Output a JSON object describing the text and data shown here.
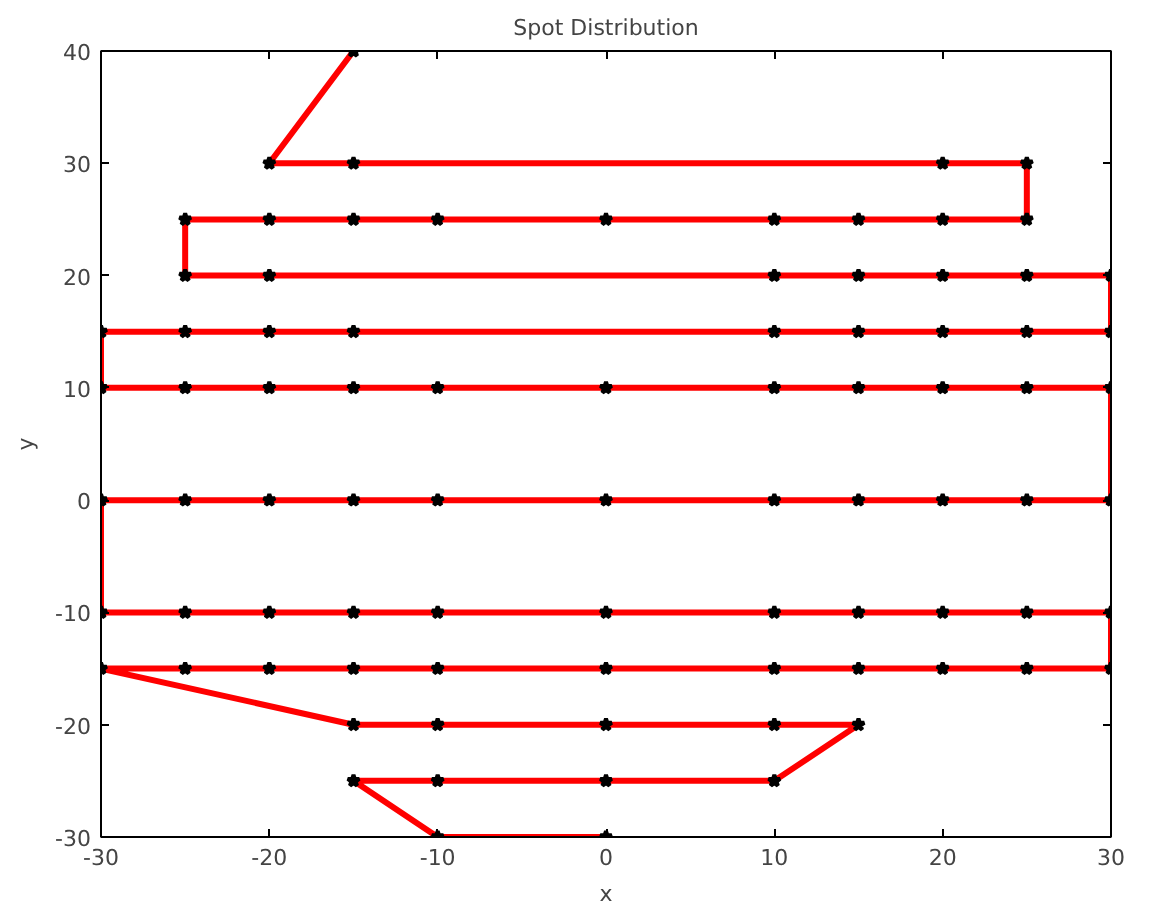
{
  "chart_data": {
    "type": "line",
    "title": "Spot Distribution",
    "xlabel": "x",
    "ylabel": "y",
    "xlim": [
      -30,
      30
    ],
    "ylim": [
      -30,
      40
    ],
    "xticks": [
      -30,
      -20,
      -10,
      0,
      10,
      20,
      30
    ],
    "yticks": [
      -30,
      -20,
      -10,
      0,
      10,
      20,
      30,
      40
    ],
    "grid": false,
    "series": [
      {
        "color": "#ff0000",
        "line_style": "solid",
        "marker": "none",
        "x": [
          -15,
          -20,
          25,
          25,
          -25,
          -25,
          30,
          30,
          -30,
          -30,
          30,
          30,
          -30,
          -30,
          30,
          30,
          -30,
          -15,
          15,
          10,
          -15,
          -10,
          0
        ],
        "values": [
          40,
          30,
          30,
          25,
          25,
          20,
          20,
          15,
          15,
          10,
          10,
          0,
          0,
          -10,
          -10,
          -15,
          -15,
          -20,
          -20,
          -25,
          -25,
          -30,
          -30
        ]
      },
      {
        "type": "scatter",
        "color": "#000000",
        "marker": "star",
        "x": [
          -15,
          -20,
          -15,
          20,
          25,
          -25,
          -20,
          -15,
          -10,
          0,
          10,
          15,
          20,
          25,
          -25,
          -20,
          10,
          15,
          20,
          25,
          30,
          -30,
          -25,
          -20,
          -15,
          10,
          15,
          20,
          25,
          30,
          -30,
          -25,
          -20,
          -15,
          -10,
          0,
          10,
          15,
          20,
          25,
          30,
          -30,
          -25,
          -20,
          -15,
          -10,
          0,
          10,
          15,
          20,
          25,
          30,
          -30,
          -25,
          -20,
          -15,
          -10,
          0,
          10,
          15,
          20,
          25,
          30,
          -30,
          -25,
          -20,
          -15,
          -10,
          0,
          10,
          15,
          20,
          25,
          30,
          -15,
          -10,
          0,
          10,
          15,
          -15,
          -10,
          0,
          10,
          -10,
          0
        ],
        "values": [
          40,
          30,
          30,
          30,
          30,
          25,
          25,
          25,
          25,
          25,
          25,
          25,
          25,
          25,
          20,
          20,
          20,
          20,
          20,
          20,
          20,
          15,
          15,
          15,
          15,
          15,
          15,
          15,
          15,
          15,
          10,
          10,
          10,
          10,
          10,
          10,
          10,
          10,
          10,
          10,
          10,
          0,
          0,
          0,
          0,
          0,
          0,
          0,
          0,
          0,
          0,
          0,
          -10,
          -10,
          -10,
          -10,
          -10,
          -10,
          -10,
          -10,
          -10,
          -10,
          -10,
          -15,
          -15,
          -15,
          -15,
          -15,
          -15,
          -15,
          -15,
          -15,
          -15,
          -15,
          -20,
          -20,
          -20,
          -20,
          -20,
          -25,
          -25,
          -25,
          -25,
          -30,
          -30
        ]
      }
    ]
  }
}
